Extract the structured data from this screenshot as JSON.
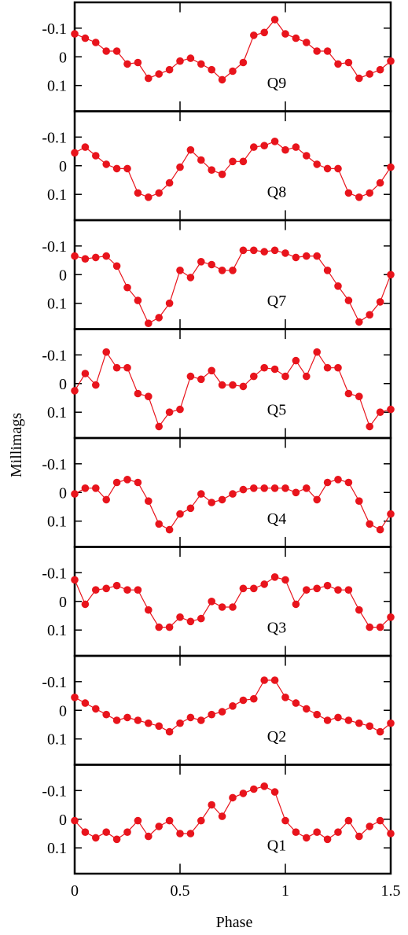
{
  "figure": {
    "ylabel": "Millimags",
    "xlabel": "Phase",
    "x_ticks": [
      0,
      0.5,
      1,
      1.5
    ],
    "x_tick_labels": [
      "0",
      "0.5",
      "1",
      "1.5"
    ],
    "y_ticks": [
      -0.1,
      0,
      0.1
    ],
    "y_tick_labels": [
      "-0.1",
      "0",
      "0.1"
    ],
    "series_color": "#e8141c",
    "frame_color": "#000000"
  },
  "chart_data": [
    {
      "type": "line",
      "panel_label": "Q9",
      "xlim": [
        0,
        1.5
      ],
      "ylim": [
        -0.19,
        0.19
      ],
      "y_inverted": true,
      "x": [
        0.0,
        0.05,
        0.1,
        0.15,
        0.2,
        0.25,
        0.3,
        0.35,
        0.4,
        0.45,
        0.5,
        0.55,
        0.6,
        0.65,
        0.7,
        0.75,
        0.8,
        0.85,
        0.9,
        0.95,
        1.0,
        1.05,
        1.1,
        1.15,
        1.2,
        1.25,
        1.3,
        1.35,
        1.4,
        1.45,
        1.5
      ],
      "values": [
        -0.08,
        -0.065,
        -0.05,
        -0.02,
        -0.02,
        0.025,
        0.02,
        0.075,
        0.06,
        0.045,
        0.015,
        0.005,
        0.025,
        0.045,
        0.08,
        0.05,
        0.02,
        -0.075,
        -0.085,
        -0.13,
        -0.08,
        -0.065,
        -0.05,
        -0.02,
        -0.02,
        0.025,
        0.02,
        0.075,
        0.06,
        0.045,
        0.015
      ]
    },
    {
      "type": "line",
      "panel_label": "Q8",
      "xlim": [
        0,
        1.5
      ],
      "ylim": [
        -0.19,
        0.19
      ],
      "y_inverted": true,
      "x": [
        0.0,
        0.05,
        0.1,
        0.15,
        0.2,
        0.25,
        0.3,
        0.35,
        0.4,
        0.45,
        0.5,
        0.55,
        0.6,
        0.65,
        0.7,
        0.75,
        0.8,
        0.85,
        0.9,
        0.95,
        1.0,
        1.05,
        1.1,
        1.15,
        1.2,
        1.25,
        1.3,
        1.35,
        1.4,
        1.45,
        1.5
      ],
      "values": [
        -0.045,
        -0.065,
        -0.035,
        -0.005,
        0.01,
        0.01,
        0.095,
        0.11,
        0.095,
        0.06,
        0.005,
        -0.055,
        -0.02,
        0.015,
        0.03,
        -0.015,
        -0.015,
        -0.065,
        -0.07,
        -0.085,
        -0.055,
        -0.065,
        -0.035,
        -0.005,
        0.01,
        0.01,
        0.095,
        0.11,
        0.095,
        0.06,
        0.005
      ]
    },
    {
      "type": "line",
      "panel_label": "Q7",
      "xlim": [
        0,
        1.5
      ],
      "ylim": [
        -0.19,
        0.19
      ],
      "y_inverted": true,
      "x": [
        0.0,
        0.05,
        0.1,
        0.15,
        0.2,
        0.25,
        0.3,
        0.35,
        0.4,
        0.45,
        0.5,
        0.55,
        0.6,
        0.65,
        0.7,
        0.75,
        0.8,
        0.85,
        0.9,
        0.95,
        1.0,
        1.05,
        1.1,
        1.15,
        1.2,
        1.25,
        1.3,
        1.35,
        1.4,
        1.45,
        1.5
      ],
      "values": [
        -0.065,
        -0.055,
        -0.06,
        -0.065,
        -0.03,
        0.045,
        0.09,
        0.17,
        0.15,
        0.1,
        -0.015,
        0.01,
        -0.045,
        -0.035,
        -0.015,
        -0.015,
        -0.085,
        -0.085,
        -0.08,
        -0.085,
        -0.075,
        -0.06,
        -0.065,
        -0.065,
        -0.015,
        0.04,
        0.09,
        0.165,
        0.14,
        0.095,
        0.0
      ]
    },
    {
      "type": "line",
      "panel_label": "Q5",
      "xlim": [
        0,
        1.5
      ],
      "ylim": [
        -0.19,
        0.19
      ],
      "y_inverted": true,
      "x": [
        0.0,
        0.05,
        0.1,
        0.15,
        0.2,
        0.25,
        0.3,
        0.35,
        0.4,
        0.45,
        0.5,
        0.55,
        0.6,
        0.65,
        0.7,
        0.75,
        0.8,
        0.85,
        0.9,
        0.95,
        1.0,
        1.05,
        1.1,
        1.15,
        1.2,
        1.25,
        1.3,
        1.35,
        1.4,
        1.45,
        1.5
      ],
      "values": [
        0.025,
        -0.035,
        0.005,
        -0.11,
        -0.055,
        -0.055,
        0.035,
        0.045,
        0.15,
        0.1,
        0.09,
        -0.025,
        -0.015,
        -0.045,
        0.005,
        0.005,
        0.01,
        -0.025,
        -0.055,
        -0.05,
        -0.025,
        -0.08,
        -0.025,
        -0.11,
        -0.055,
        -0.055,
        0.035,
        0.045,
        0.15,
        0.1,
        0.09
      ]
    },
    {
      "type": "line",
      "panel_label": "Q4",
      "xlim": [
        0,
        1.5
      ],
      "ylim": [
        -0.19,
        0.19
      ],
      "y_inverted": true,
      "x": [
        0.0,
        0.05,
        0.1,
        0.15,
        0.2,
        0.25,
        0.3,
        0.35,
        0.4,
        0.45,
        0.5,
        0.55,
        0.6,
        0.65,
        0.7,
        0.75,
        0.8,
        0.85,
        0.9,
        0.95,
        1.0,
        1.05,
        1.1,
        1.15,
        1.2,
        1.25,
        1.3,
        1.35,
        1.4,
        1.45,
        1.5
      ],
      "values": [
        0.005,
        -0.015,
        -0.015,
        0.025,
        -0.035,
        -0.045,
        -0.035,
        0.03,
        0.11,
        0.13,
        0.075,
        0.055,
        0.005,
        0.035,
        0.025,
        0.005,
        -0.01,
        -0.015,
        -0.015,
        -0.015,
        -0.015,
        0.0,
        -0.015,
        0.025,
        -0.035,
        -0.045,
        -0.035,
        0.03,
        0.11,
        0.13,
        0.075
      ]
    },
    {
      "type": "line",
      "panel_label": "Q3",
      "xlim": [
        0,
        1.5
      ],
      "ylim": [
        -0.19,
        0.19
      ],
      "y_inverted": true,
      "x": [
        0.0,
        0.05,
        0.1,
        0.15,
        0.2,
        0.25,
        0.3,
        0.35,
        0.4,
        0.45,
        0.5,
        0.55,
        0.6,
        0.65,
        0.7,
        0.75,
        0.8,
        0.85,
        0.9,
        0.95,
        1.0,
        1.05,
        1.1,
        1.15,
        1.2,
        1.25,
        1.3,
        1.35,
        1.4,
        1.45,
        1.5
      ],
      "values": [
        -0.075,
        0.01,
        -0.04,
        -0.045,
        -0.055,
        -0.04,
        -0.04,
        0.03,
        0.09,
        0.09,
        0.055,
        0.07,
        0.06,
        0.0,
        0.02,
        0.02,
        -0.045,
        -0.045,
        -0.06,
        -0.085,
        -0.075,
        0.01,
        -0.04,
        -0.045,
        -0.055,
        -0.04,
        -0.04,
        0.03,
        0.09,
        0.09,
        0.055
      ]
    },
    {
      "type": "line",
      "panel_label": "Q2",
      "xlim": [
        0,
        1.5
      ],
      "ylim": [
        -0.19,
        0.19
      ],
      "y_inverted": true,
      "x": [
        0.0,
        0.05,
        0.1,
        0.15,
        0.2,
        0.25,
        0.3,
        0.35,
        0.4,
        0.45,
        0.5,
        0.55,
        0.6,
        0.65,
        0.7,
        0.75,
        0.8,
        0.85,
        0.9,
        0.95,
        1.0,
        1.05,
        1.1,
        1.15,
        1.2,
        1.25,
        1.3,
        1.35,
        1.4,
        1.45,
        1.5
      ],
      "values": [
        -0.045,
        -0.025,
        -0.005,
        0.015,
        0.035,
        0.025,
        0.035,
        0.045,
        0.055,
        0.075,
        0.045,
        0.025,
        0.035,
        0.015,
        0.005,
        -0.015,
        -0.035,
        -0.04,
        -0.105,
        -0.105,
        -0.045,
        -0.025,
        -0.005,
        0.015,
        0.035,
        0.025,
        0.035,
        0.045,
        0.055,
        0.075,
        0.045
      ]
    },
    {
      "type": "line",
      "panel_label": "Q1",
      "xlim": [
        0,
        1.5
      ],
      "ylim": [
        -0.19,
        0.19
      ],
      "y_inverted": true,
      "x": [
        0.0,
        0.05,
        0.1,
        0.15,
        0.2,
        0.25,
        0.3,
        0.35,
        0.4,
        0.45,
        0.5,
        0.55,
        0.6,
        0.65,
        0.7,
        0.75,
        0.8,
        0.85,
        0.9,
        0.95,
        1.0,
        1.05,
        1.1,
        1.15,
        1.2,
        1.25,
        1.3,
        1.35,
        1.4,
        1.45,
        1.5
      ],
      "values": [
        0.005,
        0.045,
        0.065,
        0.045,
        0.07,
        0.045,
        0.005,
        0.06,
        0.025,
        0.005,
        0.05,
        0.05,
        0.005,
        -0.05,
        -0.01,
        -0.075,
        -0.09,
        -0.105,
        -0.115,
        -0.095,
        0.005,
        0.045,
        0.065,
        0.045,
        0.07,
        0.045,
        0.005,
        0.06,
        0.025,
        0.005,
        0.05
      ]
    }
  ]
}
